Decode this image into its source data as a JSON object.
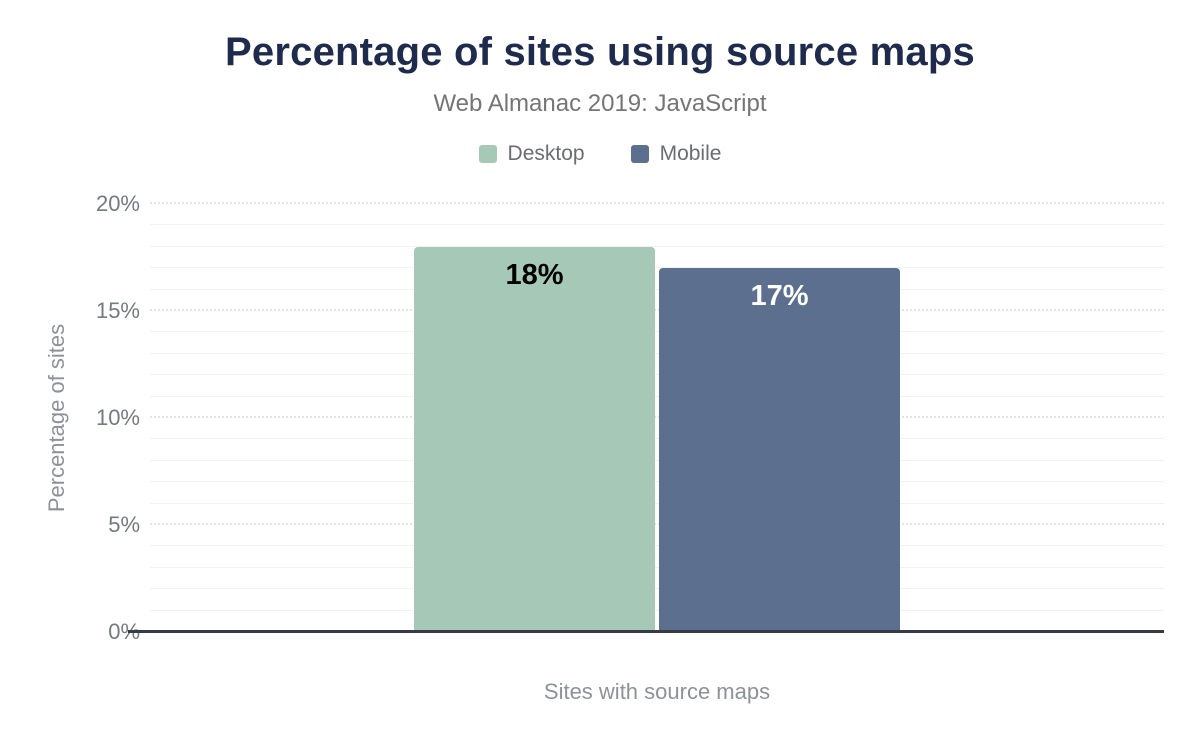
{
  "chart_data": {
    "type": "bar",
    "title": "Percentage of sites using source maps",
    "subtitle": "Web Almanac 2019: JavaScript",
    "categories": [
      "Sites with source maps"
    ],
    "series": [
      {
        "name": "Desktop",
        "values": [
          18
        ],
        "value_labels": [
          "18%"
        ],
        "color": "#a5c8b7",
        "label_color": "#000000"
      },
      {
        "name": "Mobile",
        "values": [
          17
        ],
        "value_labels": [
          "17%"
        ],
        "color": "#5d6f8e",
        "label_color": "#ffffff"
      }
    ],
    "xlabel": "Sites with source maps",
    "ylabel": "Percentage of sites",
    "ylim": [
      0,
      20
    ],
    "y_ticks": [
      {
        "value": 0,
        "label": "0%"
      },
      {
        "value": 5,
        "label": "5%"
      },
      {
        "value": 10,
        "label": "10%"
      },
      {
        "value": 15,
        "label": "15%"
      },
      {
        "value": 20,
        "label": "20%"
      }
    ],
    "minor_tick_step": 1,
    "major_tick_step": 5,
    "grid": "horizontal",
    "legend_position": "top-center"
  },
  "theme": {
    "title": "#1f2b4d",
    "subtitle": "#757575",
    "legend_text": "#6a6e74",
    "axis_tick": "#757980",
    "axis_title": "#8d929a",
    "baseline": "#363b45",
    "grid_minor": "#f2f2f2",
    "grid_major": "#e4e4e4"
  }
}
